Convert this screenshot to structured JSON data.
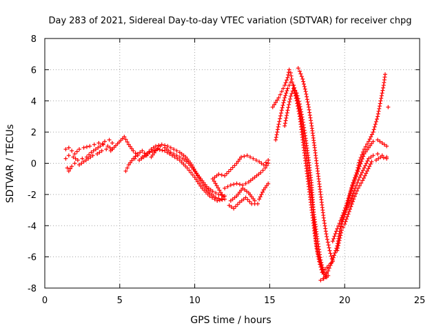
{
  "chart_data": {
    "type": "scatter",
    "title": "Day 283 of 2021, Sidereal Day-to-day VTEC variation (SDTVAR) for receiver chpg",
    "xlabel": "GPS time / hours",
    "ylabel": "SDTVAR / TECUs",
    "xlim": [
      0,
      25
    ],
    "ylim": [
      -8,
      8
    ],
    "xticks": [
      "0",
      "5",
      "10",
      "15",
      "20",
      "25"
    ],
    "yticks": [
      "8",
      "6",
      "4",
      "2",
      "0",
      "-2",
      "-4",
      "-6",
      "-8"
    ],
    "xtick_values": [
      0,
      5,
      10,
      15,
      20,
      25
    ],
    "ytick_values": [
      8,
      6,
      4,
      2,
      0,
      -2,
      -4,
      -6,
      -8
    ],
    "grid": true,
    "marker": "+",
    "color": "#ff0000",
    "series": [
      {
        "points": [
          [
            1.4,
            0.9
          ],
          [
            1.6,
            1.0
          ],
          [
            1.8,
            0.8
          ],
          [
            2.0,
            0.6
          ],
          [
            2.3,
            0.9
          ],
          [
            2.6,
            1.0
          ],
          [
            3.0,
            1.1
          ],
          [
            3.3,
            1.2
          ],
          [
            3.6,
            1.3
          ],
          [
            3.9,
            1.2
          ],
          [
            4.2,
            1.1
          ],
          [
            4.5,
            0.9
          ],
          [
            1.4,
            0.3
          ],
          [
            1.6,
            0.5
          ],
          [
            1.9,
            0.4
          ],
          [
            2.2,
            0.2
          ],
          [
            2.5,
            0.3
          ],
          [
            2.8,
            0.4
          ],
          [
            3.1,
            0.7
          ],
          [
            3.4,
            0.9
          ],
          [
            3.7,
            1.1
          ],
          [
            4.0,
            1.4
          ],
          [
            4.3,
            1.5
          ],
          [
            4.5,
            1.3
          ],
          [
            1.5,
            -0.3
          ],
          [
            1.6,
            -0.5
          ],
          [
            1.8,
            -0.2
          ],
          [
            2.0,
            0.0
          ],
          [
            2.3,
            -0.1
          ],
          [
            2.6,
            0.1
          ],
          [
            2.9,
            0.3
          ],
          [
            3.2,
            0.5
          ],
          [
            3.5,
            0.6
          ],
          [
            3.8,
            0.8
          ],
          [
            4.1,
            0.9
          ],
          [
            4.4,
            0.8
          ],
          [
            5.3,
            1.7
          ],
          [
            5.6,
            1.2
          ],
          [
            5.9,
            0.8
          ],
          [
            6.2,
            0.5
          ],
          [
            6.5,
            0.4
          ],
          [
            6.8,
            0.6
          ],
          [
            7.1,
            0.9
          ],
          [
            7.4,
            1.1
          ],
          [
            7.8,
            1.2
          ],
          [
            8.2,
            1.1
          ],
          [
            8.6,
            0.9
          ],
          [
            9.0,
            0.7
          ],
          [
            9.4,
            0.4
          ],
          [
            9.8,
            -0.1
          ],
          [
            10.2,
            -0.8
          ],
          [
            10.6,
            -1.4
          ],
          [
            11.0,
            -1.9
          ],
          [
            11.4,
            -2.2
          ],
          [
            11.8,
            -2.3
          ],
          [
            5.4,
            -0.5
          ],
          [
            5.6,
            -0.1
          ],
          [
            5.9,
            0.3
          ],
          [
            6.2,
            0.6
          ],
          [
            6.5,
            0.8
          ],
          [
            6.8,
            0.5
          ],
          [
            7.1,
            0.4
          ],
          [
            7.4,
            0.8
          ],
          [
            7.7,
            1.1
          ],
          [
            8.0,
            1.0
          ],
          [
            8.4,
            0.7
          ],
          [
            8.8,
            0.5
          ],
          [
            9.2,
            0.3
          ],
          [
            9.6,
            0.0
          ],
          [
            10.0,
            -0.5
          ],
          [
            10.4,
            -1.0
          ],
          [
            10.8,
            -1.5
          ],
          [
            11.2,
            -1.8
          ],
          [
            11.6,
            -2.0
          ],
          [
            12.0,
            -2.1
          ],
          [
            6.0,
            0.3
          ],
          [
            6.3,
            0.2
          ],
          [
            6.6,
            0.4
          ],
          [
            7.0,
            0.7
          ],
          [
            7.5,
            0.9
          ],
          [
            8.0,
            0.8
          ],
          [
            8.5,
            0.5
          ],
          [
            9.0,
            0.2
          ],
          [
            9.5,
            -0.3
          ],
          [
            10.0,
            -0.9
          ],
          [
            10.5,
            -1.6
          ],
          [
            11.0,
            -2.1
          ],
          [
            11.5,
            -2.4
          ],
          [
            12.0,
            -2.3
          ],
          [
            11.2,
            -1.0
          ],
          [
            11.6,
            -0.7
          ],
          [
            12.0,
            -0.8
          ],
          [
            12.4,
            -0.4
          ],
          [
            12.8,
            0.0
          ],
          [
            13.1,
            0.4
          ],
          [
            13.5,
            0.5
          ],
          [
            13.9,
            0.3
          ],
          [
            14.3,
            0.1
          ],
          [
            14.6,
            -0.1
          ],
          [
            14.9,
            0.2
          ],
          [
            12.0,
            -1.6
          ],
          [
            12.4,
            -1.4
          ],
          [
            12.8,
            -1.3
          ],
          [
            13.2,
            -1.4
          ],
          [
            13.6,
            -1.2
          ],
          [
            14.0,
            -0.9
          ],
          [
            14.4,
            -0.6
          ],
          [
            14.7,
            -0.3
          ],
          [
            14.9,
            0.0
          ],
          [
            12.4,
            -2.4
          ],
          [
            12.8,
            -2.1
          ],
          [
            13.2,
            -1.6
          ],
          [
            13.6,
            -1.9
          ],
          [
            14.0,
            -2.4
          ],
          [
            14.3,
            -2.3
          ],
          [
            14.6,
            -1.7
          ],
          [
            14.9,
            -1.3
          ],
          [
            12.3,
            -2.7
          ],
          [
            12.6,
            -2.9
          ],
          [
            13.0,
            -2.5
          ],
          [
            13.4,
            -2.2
          ],
          [
            13.8,
            -2.6
          ],
          [
            14.2,
            -2.6
          ],
          [
            15.2,
            3.6
          ],
          [
            15.4,
            3.9
          ],
          [
            15.6,
            4.2
          ],
          [
            15.8,
            4.6
          ],
          [
            16.0,
            5.0
          ],
          [
            16.2,
            5.5
          ],
          [
            16.3,
            6.0
          ],
          [
            16.4,
            5.8
          ],
          [
            16.5,
            5.2
          ],
          [
            16.6,
            4.8
          ],
          [
            16.8,
            4.0
          ],
          [
            17.0,
            3.0
          ],
          [
            17.2,
            1.5
          ],
          [
            17.4,
            0.0
          ],
          [
            17.6,
            -1.5
          ],
          [
            17.8,
            -3.0
          ],
          [
            18.0,
            -4.5
          ],
          [
            18.2,
            -5.7
          ],
          [
            18.4,
            -6.5
          ],
          [
            18.6,
            -7.1
          ],
          [
            18.8,
            -7.3
          ],
          [
            15.4,
            1.5
          ],
          [
            15.6,
            2.5
          ],
          [
            15.8,
            3.4
          ],
          [
            16.0,
            4.2
          ],
          [
            16.2,
            4.8
          ],
          [
            16.4,
            5.2
          ],
          [
            16.6,
            5.0
          ],
          [
            16.8,
            4.2
          ],
          [
            17.0,
            3.4
          ],
          [
            17.2,
            2.2
          ],
          [
            17.4,
            0.8
          ],
          [
            17.6,
            -0.8
          ],
          [
            17.8,
            -2.2
          ],
          [
            18.0,
            -3.6
          ],
          [
            18.2,
            -5.0
          ],
          [
            18.4,
            -6.2
          ],
          [
            18.6,
            -7.0
          ],
          [
            18.8,
            -7.3
          ],
          [
            16.0,
            2.4
          ],
          [
            16.2,
            3.4
          ],
          [
            16.4,
            4.3
          ],
          [
            16.6,
            4.8
          ],
          [
            16.8,
            4.5
          ],
          [
            17.0,
            3.8
          ],
          [
            17.2,
            2.8
          ],
          [
            17.4,
            1.6
          ],
          [
            17.6,
            0.2
          ],
          [
            17.8,
            -1.4
          ],
          [
            17.9,
            -2.8
          ],
          [
            18.0,
            -4.1
          ],
          [
            18.1,
            -5.3
          ],
          [
            18.3,
            -6.3
          ],
          [
            18.5,
            -7.0
          ],
          [
            16.9,
            6.1
          ],
          [
            17.0,
            5.9
          ],
          [
            17.2,
            5.4
          ],
          [
            17.4,
            4.6
          ],
          [
            17.6,
            3.6
          ],
          [
            17.8,
            2.4
          ],
          [
            18.0,
            1.0
          ],
          [
            18.2,
            -0.5
          ],
          [
            18.4,
            -2.0
          ],
          [
            18.6,
            -3.5
          ],
          [
            18.8,
            -4.7
          ],
          [
            19.0,
            -5.6
          ],
          [
            19.2,
            -6.3
          ],
          [
            18.7,
            -6.8
          ],
          [
            18.9,
            -7.2
          ],
          [
            18.4,
            -7.5
          ],
          [
            18.6,
            -7.4
          ],
          [
            18.9,
            -6.9
          ],
          [
            19.2,
            -6.2
          ],
          [
            19.5,
            -5.3
          ],
          [
            19.7,
            -4.2
          ],
          [
            19.9,
            -3.6
          ],
          [
            20.1,
            -3.0
          ],
          [
            20.3,
            -2.2
          ],
          [
            20.5,
            -1.4
          ],
          [
            20.8,
            -0.6
          ],
          [
            21.0,
            0.2
          ],
          [
            21.3,
            0.9
          ],
          [
            21.6,
            1.4
          ],
          [
            21.9,
            2.0
          ],
          [
            22.2,
            3.0
          ],
          [
            22.4,
            4.0
          ],
          [
            22.6,
            5.0
          ],
          [
            22.7,
            5.7
          ],
          [
            19.2,
            -5.0
          ],
          [
            19.5,
            -4.2
          ],
          [
            19.8,
            -3.5
          ],
          [
            20.1,
            -2.7
          ],
          [
            20.4,
            -1.8
          ],
          [
            20.7,
            -1.0
          ],
          [
            21.0,
            -0.2
          ],
          [
            21.3,
            0.6
          ],
          [
            21.6,
            1.0
          ],
          [
            21.9,
            1.4
          ],
          [
            22.2,
            1.5
          ],
          [
            22.5,
            1.3
          ],
          [
            22.8,
            1.1
          ],
          [
            19.8,
            -3.6
          ],
          [
            20.1,
            -3.0
          ],
          [
            20.4,
            -2.4
          ],
          [
            20.7,
            -1.6
          ],
          [
            21.0,
            -0.9
          ],
          [
            21.3,
            -0.3
          ],
          [
            21.6,
            0.3
          ],
          [
            21.9,
            0.5
          ],
          [
            22.2,
            0.6
          ],
          [
            22.5,
            0.5
          ],
          [
            22.8,
            0.4
          ],
          [
            19.5,
            -5.6
          ],
          [
            19.8,
            -4.3
          ],
          [
            20.0,
            -3.9
          ],
          [
            20.3,
            -3.1
          ],
          [
            20.6,
            -2.3
          ],
          [
            20.9,
            -1.6
          ],
          [
            21.2,
            -1.1
          ],
          [
            21.5,
            -0.5
          ],
          [
            21.8,
            0.1
          ],
          [
            22.1,
            0.2
          ],
          [
            22.4,
            0.4
          ],
          [
            22.8,
            0.3
          ],
          [
            22.9,
            3.6
          ]
        ]
      }
    ]
  }
}
